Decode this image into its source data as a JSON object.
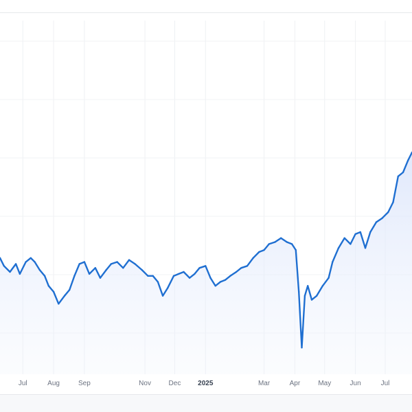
{
  "chart_data": {
    "type": "area",
    "title": "",
    "xlabel": "",
    "ylabel": "",
    "grid": true,
    "legend": "none",
    "x_ticks": [
      {
        "label": "Jul",
        "date": "2024-07-01",
        "bold": false
      },
      {
        "label": "Aug",
        "date": "2024-08-01",
        "bold": false
      },
      {
        "label": "Sep",
        "date": "2024-09-01",
        "bold": false
      },
      {
        "label": "Nov",
        "date": "2024-11-01",
        "bold": false
      },
      {
        "label": "Dec",
        "date": "2024-12-01",
        "bold": false
      },
      {
        "label": "2025",
        "date": "2025-01-01",
        "bold": true
      },
      {
        "label": "Mar",
        "date": "2025-03-01",
        "bold": false
      },
      {
        "label": "Apr",
        "date": "2025-04-01",
        "bold": false
      },
      {
        "label": "May",
        "date": "2025-05-01",
        "bold": false
      },
      {
        "label": "Jun",
        "date": "2025-06-01",
        "bold": false
      },
      {
        "label": "Jul",
        "date": "2025-07-01",
        "bold": false
      }
    ],
    "xlim": [
      "2024-06-08",
      "2025-07-28"
    ],
    "ylim": [
      0,
      100
    ],
    "series": [
      {
        "color": "#1f6fd1",
        "fill_color": "#dde6fb",
        "points": [
          [
            "2024-06-08",
            47
          ],
          [
            "2024-06-12",
            43
          ],
          [
            "2024-06-18",
            40
          ],
          [
            "2024-06-24",
            44
          ],
          [
            "2024-06-28",
            39
          ],
          [
            "2024-07-04",
            45
          ],
          [
            "2024-07-09",
            47
          ],
          [
            "2024-07-13",
            45
          ],
          [
            "2024-07-18",
            41
          ],
          [
            "2024-07-23",
            38
          ],
          [
            "2024-07-27",
            33
          ],
          [
            "2024-08-01",
            30
          ],
          [
            "2024-08-06",
            24
          ],
          [
            "2024-08-12",
            28
          ],
          [
            "2024-08-17",
            31
          ],
          [
            "2024-08-22",
            38
          ],
          [
            "2024-08-27",
            44
          ],
          [
            "2024-09-01",
            45
          ],
          [
            "2024-09-06",
            39
          ],
          [
            "2024-09-12",
            42
          ],
          [
            "2024-09-17",
            37
          ],
          [
            "2024-09-23",
            41
          ],
          [
            "2024-09-28",
            44
          ],
          [
            "2024-10-04",
            45
          ],
          [
            "2024-10-10",
            42
          ],
          [
            "2024-10-16",
            46
          ],
          [
            "2024-10-22",
            44
          ],
          [
            "2024-10-29",
            41
          ],
          [
            "2024-11-04",
            38
          ],
          [
            "2024-11-09",
            38
          ],
          [
            "2024-11-14",
            35
          ],
          [
            "2024-11-19",
            28
          ],
          [
            "2024-11-24",
            32
          ],
          [
            "2024-11-30",
            38
          ],
          [
            "2024-12-05",
            39
          ],
          [
            "2024-12-10",
            40
          ],
          [
            "2024-12-16",
            37
          ],
          [
            "2024-12-21",
            39
          ],
          [
            "2024-12-26",
            42
          ],
          [
            "2025-01-01",
            43
          ],
          [
            "2025-01-06",
            37
          ],
          [
            "2025-01-11",
            33
          ],
          [
            "2025-01-16",
            35
          ],
          [
            "2025-01-21",
            36
          ],
          [
            "2025-01-26",
            38
          ],
          [
            "2025-02-01",
            40
          ],
          [
            "2025-02-06",
            42
          ],
          [
            "2025-02-12",
            43
          ],
          [
            "2025-02-18",
            47
          ],
          [
            "2025-02-24",
            50
          ],
          [
            "2025-03-01",
            51
          ],
          [
            "2025-03-06",
            54
          ],
          [
            "2025-03-12",
            55
          ],
          [
            "2025-03-18",
            57
          ],
          [
            "2025-03-24",
            55
          ],
          [
            "2025-03-29",
            54
          ],
          [
            "2025-04-02",
            51
          ],
          [
            "2025-04-05",
            30
          ],
          [
            "2025-04-08",
            2
          ],
          [
            "2025-04-11",
            28
          ],
          [
            "2025-04-14",
            33
          ],
          [
            "2025-04-18",
            26
          ],
          [
            "2025-04-23",
            28
          ],
          [
            "2025-04-29",
            33
          ],
          [
            "2025-05-05",
            37
          ],
          [
            "2025-05-09",
            45
          ],
          [
            "2025-05-15",
            52
          ],
          [
            "2025-05-21",
            57
          ],
          [
            "2025-05-27",
            54
          ],
          [
            "2025-06-01",
            59
          ],
          [
            "2025-06-06",
            60
          ],
          [
            "2025-06-11",
            52
          ],
          [
            "2025-06-16",
            60
          ],
          [
            "2025-06-22",
            65
          ],
          [
            "2025-06-28",
            67
          ],
          [
            "2025-07-04",
            70
          ],
          [
            "2025-07-09",
            75
          ],
          [
            "2025-07-14",
            88
          ],
          [
            "2025-07-19",
            90
          ],
          [
            "2025-07-24",
            96
          ],
          [
            "2025-07-28",
            100
          ]
        ]
      }
    ]
  }
}
